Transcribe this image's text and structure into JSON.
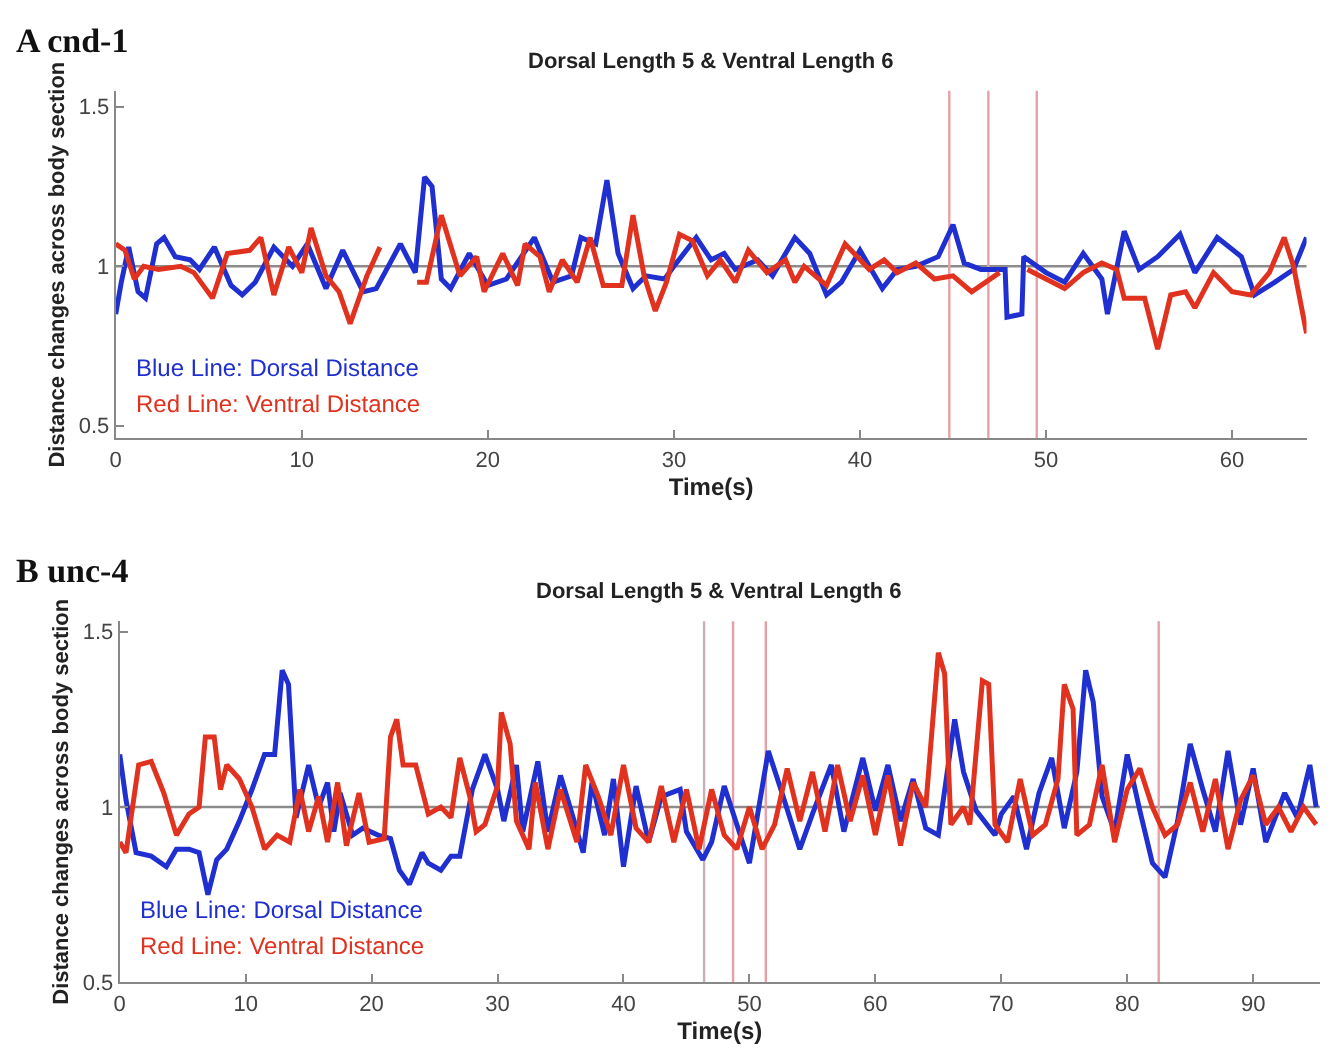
{
  "chart_data": [
    {
      "type": "line",
      "title": "Dorsal Length 5 & Ventral Length 6",
      "xlabel": "Time(s)",
      "ylabel": "Distance changes across body section",
      "annotations": [
        "A cnd-1"
      ],
      "xlim": [
        0,
        64
      ],
      "xticks": [
        0,
        10,
        20,
        30,
        40,
        50,
        60
      ],
      "ylim": [
        0.46,
        1.55
      ],
      "yticks": [
        0.5,
        1,
        1.5
      ],
      "grid": false,
      "legend": false,
      "marker": "none",
      "line_style": "solid",
      "ref_lines": [
        {
          "axis": "y",
          "value": 1,
          "color": "#8c8c8c"
        },
        {
          "axis": "x",
          "value": 44.8,
          "color": "#e8a0a8"
        },
        {
          "axis": "x",
          "value": 46.9,
          "color": "#e8a0a8"
        },
        {
          "axis": "x",
          "value": 49.5,
          "color": "#e8a0a8"
        }
      ],
      "series": [
        {
          "name": "Blue Line: Dorsal Distance",
          "color": "#1f2fd0",
          "x": [
            0,
            0.3,
            0.7,
            1.2,
            1.6,
            2.2,
            2.6,
            3.2,
            4,
            4.5,
            5.3,
            6.2,
            6.8,
            7.5,
            8.5,
            9.5,
            10.3,
            11.3,
            12.2,
            13.3,
            14,
            15.3,
            16.1,
            16.6,
            17,
            17.5,
            18,
            19,
            20,
            21,
            22.5,
            23.5,
            24.5,
            25,
            25.8,
            26.4,
            27,
            27.8,
            28.5,
            29.5,
            30,
            31.2,
            32,
            32.7,
            33.3,
            34.5,
            35.3,
            36.5,
            37.3,
            38.2,
            39,
            40,
            41.2,
            42,
            43,
            44.2,
            45,
            45.6,
            46.5,
            47.8,
            47.9,
            48.7,
            48.8,
            50,
            51,
            52,
            53,
            53.3,
            54.2,
            55,
            56,
            57.2,
            58,
            59.2,
            60.5,
            61.2,
            62.3,
            63.3,
            64
          ],
          "values": [
            0.85,
            0.95,
            1.06,
            0.92,
            0.9,
            1.07,
            1.09,
            1.03,
            1.02,
            0.99,
            1.06,
            0.94,
            0.91,
            0.95,
            1.06,
            1.0,
            1.07,
            0.93,
            1.05,
            0.92,
            0.93,
            1.07,
            0.98,
            1.28,
            1.25,
            0.96,
            0.93,
            1.04,
            0.94,
            0.96,
            1.09,
            0.95,
            0.97,
            1.09,
            1.07,
            1.27,
            1.04,
            0.93,
            0.97,
            0.96,
            1.0,
            1.09,
            1.02,
            1.04,
            0.99,
            1.02,
            0.97,
            1.09,
            1.04,
            0.91,
            0.95,
            1.05,
            0.93,
            0.99,
            1.0,
            1.03,
            1.13,
            1.01,
            0.99,
            0.99,
            0.84,
            0.85,
            1.03,
            0.98,
            0.95,
            1.04,
            0.96,
            0.85,
            1.11,
            0.99,
            1.03,
            1.1,
            0.98,
            1.09,
            1.03,
            0.91,
            0.95,
            0.99,
            1.09
          ]
        },
        {
          "name": "Red Line: Ventral Distance",
          "color": "#e0321e",
          "x": [
            0,
            0.5,
            1,
            1.5,
            2.3,
            3.5,
            4.2,
            5.2,
            6,
            7.2,
            7.8,
            8.5,
            9.3,
            10,
            10.5,
            11.3,
            12,
            12.6,
            13.5,
            14.2,
            14.6,
            15.8,
            16.2,
            16.7,
            17.5,
            18.5,
            19.4,
            19.8,
            20.8,
            21.6,
            22,
            22.8,
            23.3,
            24,
            24.8,
            25.5,
            26.2,
            27.2,
            27.8,
            28.4,
            29,
            29.6,
            30.3,
            31,
            31.8,
            32.5,
            33.3,
            34,
            35,
            36,
            36.5,
            37,
            38.2,
            39.2,
            40.5,
            41.3,
            42,
            43,
            44,
            45,
            46,
            47.5,
            47.8,
            48.2,
            48.4,
            48.9,
            49,
            50,
            51,
            52,
            53,
            53.8,
            54.2,
            55.3,
            56,
            56.7,
            57.5,
            58,
            59,
            60,
            61,
            62,
            62.8,
            63.3,
            64
          ],
          "values": [
            1.07,
            1.05,
            0.96,
            1.0,
            0.99,
            1.0,
            0.98,
            0.9,
            1.04,
            1.05,
            1.09,
            0.91,
            1.06,
            0.98,
            1.12,
            0.97,
            0.92,
            0.82,
            0.97,
            1.06,
            null,
            null,
            0.95,
            0.95,
            1.16,
            0.97,
            1.03,
            0.92,
            1.04,
            0.94,
            1.07,
            1.03,
            0.92,
            1.02,
            0.95,
            1.09,
            0.94,
            0.94,
            1.16,
            0.97,
            0.86,
            0.95,
            1.1,
            1.08,
            0.97,
            1.02,
            0.95,
            1.05,
            0.98,
            1.02,
            0.95,
            1.0,
            0.94,
            1.07,
            0.99,
            1.02,
            0.98,
            1.01,
            0.96,
            0.97,
            0.92,
            0.98,
            null,
            null,
            null,
            null,
            0.99,
            0.96,
            0.93,
            0.98,
            1.01,
            0.99,
            0.9,
            0.9,
            0.74,
            0.91,
            0.92,
            0.87,
            0.98,
            0.92,
            0.91,
            0.98,
            1.09,
            1.0,
            0.79
          ]
        }
      ]
    },
    {
      "type": "line",
      "title": "Dorsal Length 5 & Ventral Length 6",
      "xlabel": "Time(s)",
      "ylabel": "Distance changes across body section",
      "annotations": [
        "B unc-4"
      ],
      "xlim": [
        0,
        95.3
      ],
      "xticks": [
        0,
        10,
        20,
        30,
        40,
        50,
        60,
        70,
        80,
        90
      ],
      "ylim": [
        0.5,
        1.53
      ],
      "yticks": [
        0.5,
        1,
        1.5
      ],
      "grid": false,
      "legend": false,
      "marker": "none",
      "line_style": "solid",
      "ref_lines": [
        {
          "axis": "y",
          "value": 1,
          "color": "#8c8c8c"
        },
        {
          "axis": "x",
          "value": 46.4,
          "color": "#c8b0b8"
        },
        {
          "axis": "x",
          "value": 48.7,
          "color": "#e8a0a8"
        },
        {
          "axis": "x",
          "value": 51.3,
          "color": "#e8a0a8"
        },
        {
          "axis": "x",
          "value": 82.5,
          "color": "#e8a0a8"
        }
      ],
      "series": [
        {
          "name": "Blue Line: Dorsal Distance",
          "color": "#1f2fd0",
          "x": [
            0,
            0.5,
            1.3,
            2.5,
            3.7,
            4.5,
            5.5,
            6.3,
            7,
            7.7,
            8.5,
            9.5,
            10.5,
            11.5,
            12.3,
            12.9,
            13.4,
            14,
            15,
            15.8,
            16.5,
            17,
            17.5,
            18.5,
            19.3,
            20.5,
            21.5,
            22.2,
            23,
            24,
            24.5,
            25.5,
            26.3,
            27,
            28,
            29,
            30,
            30.5,
            31.5,
            32,
            33.2,
            34,
            35,
            36,
            36.8,
            37.5,
            38.5,
            39.2,
            40,
            41,
            42,
            43,
            44.5,
            45,
            46.3,
            47,
            48,
            49,
            50,
            51.5,
            52.5,
            54,
            55,
            56.5,
            57.5,
            59,
            60,
            61,
            62,
            63,
            64,
            65,
            66.3,
            67,
            68,
            69.5,
            70,
            71,
            72,
            73,
            74,
            75,
            76,
            76.7,
            77.3,
            78,
            79,
            80,
            81,
            82,
            83,
            84,
            85,
            86,
            87,
            88,
            89,
            90,
            91,
            92.5,
            93.5,
            94.5,
            95
          ],
          "values": [
            1.15,
            1.02,
            0.87,
            0.86,
            0.83,
            0.88,
            0.88,
            0.87,
            0.75,
            0.85,
            0.88,
            0.96,
            1.05,
            1.15,
            1.15,
            1.39,
            1.35,
            0.97,
            1.12,
            1.0,
            1.07,
            0.93,
            1.04,
            0.92,
            0.94,
            0.92,
            0.91,
            0.82,
            0.78,
            0.87,
            0.84,
            0.82,
            0.86,
            0.86,
            1.05,
            1.15,
            1.05,
            0.96,
            1.12,
            0.93,
            1.13,
            0.93,
            1.09,
            0.97,
            0.87,
            1.07,
            0.92,
            1.08,
            0.83,
            1.06,
            0.9,
            1.03,
            1.05,
            0.93,
            0.85,
            0.9,
            1.06,
            0.95,
            0.84,
            1.16,
            1.05,
            0.88,
            0.98,
            1.12,
            0.93,
            1.14,
            0.99,
            1.12,
            0.96,
            1.08,
            0.94,
            0.92,
            1.25,
            1.1,
            0.99,
            0.92,
            0.98,
            1.03,
            0.88,
            1.04,
            1.14,
            0.94,
            1.1,
            1.39,
            1.3,
            1.03,
            0.93,
            1.15,
            0.99,
            0.84,
            0.8,
            0.96,
            1.18,
            1.05,
            0.93,
            1.16,
            0.95,
            1.11,
            0.9,
            1.04,
            0.97,
            1.12,
            1.0
          ]
        },
        {
          "name": "Red Line: Ventral Distance",
          "color": "#e0321e",
          "x": [
            0,
            0.5,
            1.5,
            2.5,
            3.5,
            4.5,
            5.5,
            6.3,
            6.8,
            7.5,
            8,
            8.5,
            9.5,
            10.5,
            11.5,
            12.5,
            13.5,
            14.3,
            15,
            15.8,
            16.5,
            17.3,
            18,
            19,
            19.8,
            21,
            21.5,
            22,
            22.5,
            23.5,
            24.5,
            25.5,
            26.3,
            27,
            27.8,
            28.3,
            29,
            30,
            30.3,
            31,
            31.5,
            32.5,
            33,
            34,
            35,
            36.3,
            37,
            38,
            39,
            40,
            41,
            42,
            43,
            44,
            45,
            46,
            47,
            48,
            49,
            50,
            51,
            52,
            53,
            54,
            55,
            56,
            57,
            58,
            59,
            60,
            61,
            62,
            63,
            64,
            65,
            65.5,
            66,
            67,
            67.5,
            68.5,
            69,
            69.5,
            70.5,
            71.5,
            72.5,
            73.5,
            74.5,
            75,
            75.7,
            76,
            77,
            78,
            79,
            80,
            81,
            82,
            83,
            84,
            85,
            86,
            87,
            88,
            89,
            90,
            91,
            92,
            93,
            94,
            95
          ],
          "values": [
            0.9,
            0.87,
            1.12,
            1.13,
            1.04,
            0.92,
            0.98,
            1.0,
            1.2,
            1.2,
            1.05,
            1.12,
            1.08,
            1.0,
            0.88,
            0.92,
            0.9,
            1.05,
            0.93,
            1.03,
            0.9,
            1.07,
            0.89,
            1.04,
            0.9,
            0.91,
            1.2,
            1.25,
            1.12,
            1.12,
            0.98,
            1.0,
            0.97,
            1.14,
            1.03,
            0.93,
            0.95,
            1.06,
            1.27,
            1.18,
            0.96,
            0.88,
            1.07,
            0.88,
            1.05,
            0.9,
            1.12,
            1.03,
            0.92,
            1.12,
            0.94,
            0.9,
            1.06,
            0.9,
            1.05,
            0.88,
            1.05,
            0.92,
            0.88,
            1.0,
            0.88,
            0.95,
            1.11,
            0.96,
            1.1,
            0.93,
            1.12,
            0.96,
            1.09,
            0.92,
            1.09,
            0.89,
            1.07,
            1.0,
            1.44,
            1.38,
            0.95,
            1.0,
            0.95,
            1.36,
            1.35,
            0.95,
            0.9,
            1.08,
            0.92,
            0.95,
            1.08,
            1.35,
            1.28,
            0.92,
            0.95,
            1.12,
            0.9,
            1.05,
            1.11,
            1.0,
            0.92,
            0.95,
            1.07,
            0.93,
            1.08,
            0.88,
            1.02,
            1.09,
            0.95,
            1.0,
            0.93,
            1.0,
            0.95
          ]
        }
      ]
    }
  ]
}
